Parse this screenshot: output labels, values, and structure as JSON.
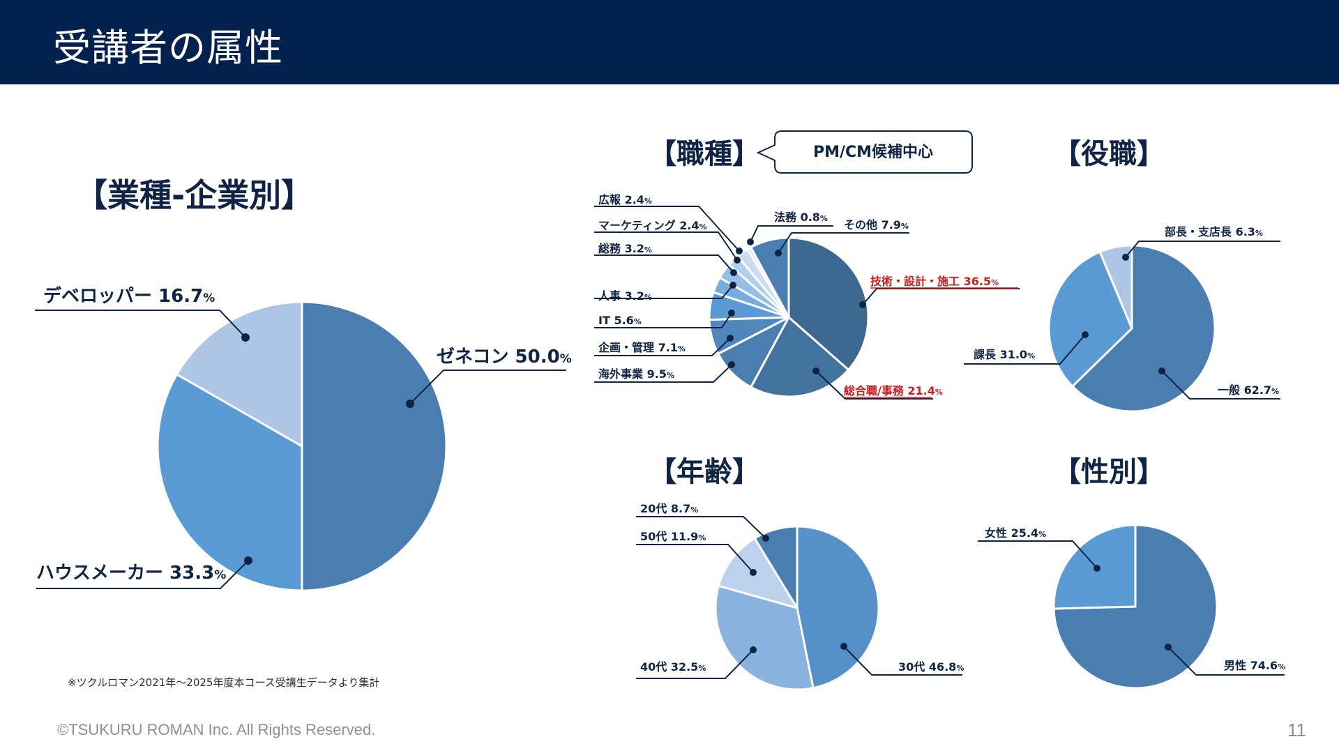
{
  "page": {
    "title": "受講者の属性",
    "footnote": "※ツクルロマン2021年〜2025年度本コース受講生データより集計",
    "copyright": "©TSUKURU ROMAN Inc. All Rights Reserved.",
    "page_number": "11",
    "callout": "PM/CM候補中心"
  },
  "colors": {
    "header": "#02214f",
    "highlight": "#d01c1c",
    "text": "#0f2444"
  },
  "chart_data": [
    {
      "id": "industry",
      "type": "pie",
      "title": "【業種-企業別】",
      "slices": [
        {
          "label": "ゼネコン",
          "value": 50.0,
          "color": "#4a7eb0"
        },
        {
          "label": "ハウスメーカー",
          "value": 33.3,
          "color": "#5b9bd5"
        },
        {
          "label": "デベロッパー",
          "value": 16.7,
          "color": "#aec6e6"
        }
      ]
    },
    {
      "id": "job",
      "type": "pie",
      "title": "【職種】",
      "slices": [
        {
          "label": "技術・設計・施工",
          "value": 36.5,
          "color": "#3d6991",
          "highlight": true
        },
        {
          "label": "総合職/事務",
          "value": 21.4,
          "color": "#42739f",
          "highlight": true
        },
        {
          "label": "海外事業",
          "value": 9.5,
          "color": "#4a7eb0"
        },
        {
          "label": "企画・管理",
          "value": 7.1,
          "color": "#5088bd"
        },
        {
          "label": "IT",
          "value": 5.6,
          "color": "#5b9bd5"
        },
        {
          "label": "人事",
          "value": 3.2,
          "color": "#78acdf"
        },
        {
          "label": "総務",
          "value": 3.2,
          "color": "#96bde6"
        },
        {
          "label": "マーケティング",
          "value": 2.4,
          "color": "#b3cfee"
        },
        {
          "label": "広報",
          "value": 2.4,
          "color": "#cbdcf2"
        },
        {
          "label": "法務",
          "value": 0.8,
          "color": "#dde8f6"
        },
        {
          "label": "その他",
          "value": 7.9,
          "color": "#4a7eb0"
        }
      ]
    },
    {
      "id": "position",
      "type": "pie",
      "title": "【役職】",
      "slices": [
        {
          "label": "一般",
          "value": 62.7,
          "color": "#4a7eb0"
        },
        {
          "label": "課長",
          "value": 31.0,
          "color": "#5b9bd5"
        },
        {
          "label": "部長・支店長",
          "value": 6.3,
          "color": "#aec6e6"
        }
      ]
    },
    {
      "id": "age",
      "type": "pie",
      "title": "【年齢】",
      "slices": [
        {
          "label": "30代",
          "value": 46.8,
          "color": "#5590c9"
        },
        {
          "label": "40代",
          "value": 32.5,
          "color": "#8ab2df"
        },
        {
          "label": "50代",
          "value": 11.9,
          "color": "#bcd2ec"
        },
        {
          "label": "20代",
          "value": 8.7,
          "color": "#4a7eb0"
        }
      ]
    },
    {
      "id": "gender",
      "type": "pie",
      "title": "【性別】",
      "slices": [
        {
          "label": "男性",
          "value": 74.6,
          "color": "#4a7eb0"
        },
        {
          "label": "女性",
          "value": 25.4,
          "color": "#5b9bd5"
        }
      ]
    }
  ]
}
